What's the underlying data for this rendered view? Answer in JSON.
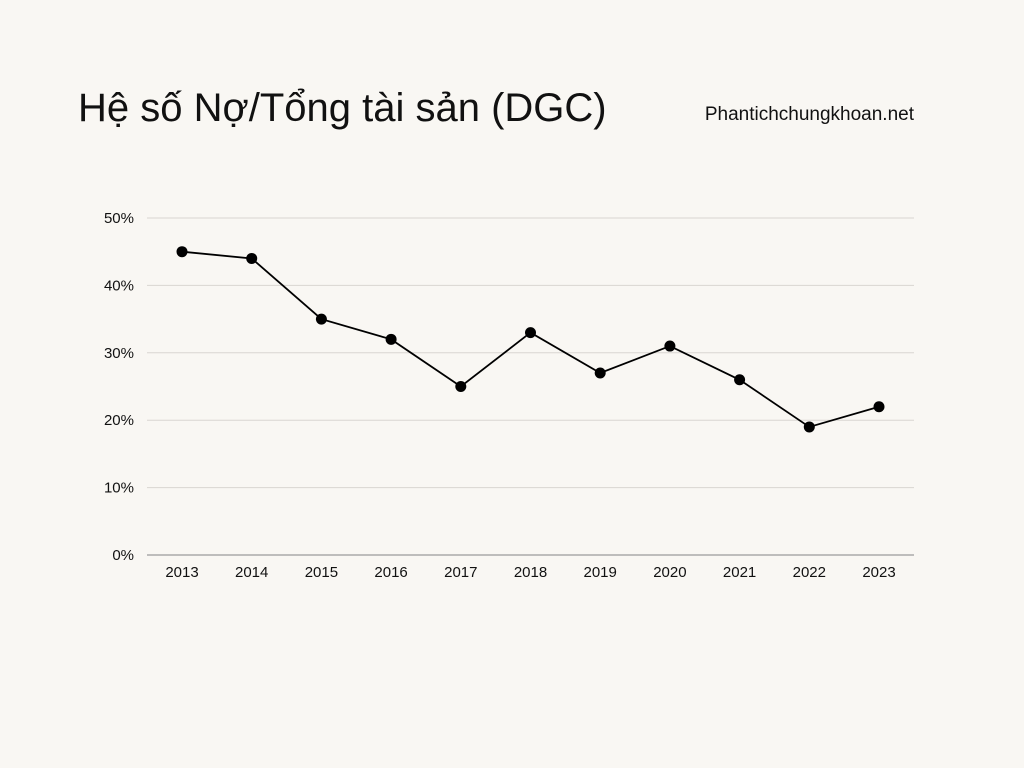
{
  "header": {
    "title": "Hệ số Nợ/Tổng tài sản (DGC)",
    "source": "Phantichchungkhoan.net"
  },
  "colors": {
    "background": "#f9f7f3",
    "line": "#000000",
    "grid": "#d9d6d1",
    "axis": "#9a9a9a"
  },
  "chart_data": {
    "type": "line",
    "title": "Hệ số Nợ/Tổng tài sản (DGC)",
    "xlabel": "",
    "ylabel": "",
    "categories": [
      "2013",
      "2014",
      "2015",
      "2016",
      "2017",
      "2018",
      "2019",
      "2020",
      "2021",
      "2022",
      "2023"
    ],
    "values": [
      45,
      44,
      35,
      32,
      25,
      33,
      27,
      31,
      26,
      19,
      22
    ],
    "y_unit": "%",
    "ylim": [
      0,
      50
    ],
    "yticks": [
      0,
      10,
      20,
      30,
      40,
      50
    ],
    "ytick_labels": [
      "0%",
      "10%",
      "20%",
      "30%",
      "40%",
      "50%"
    ],
    "grid": true,
    "legend": "none",
    "markers": true
  }
}
